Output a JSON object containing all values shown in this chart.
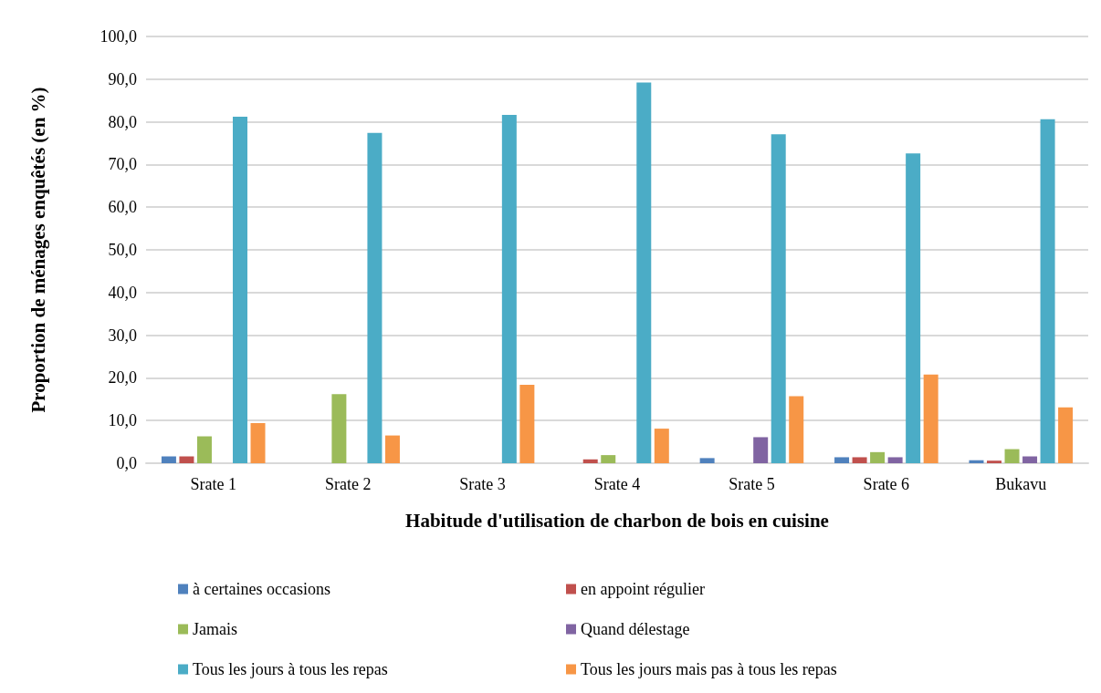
{
  "chart_data": {
    "type": "bar",
    "xlabel": "Habitude d'utilisation de charbon de bois en cuisine",
    "ylabel": "Proportion de ménages enquêtés (en %)",
    "categories": [
      "Srate 1",
      "Srate 2",
      "Srate 3",
      "Srate 4",
      "Srate 5",
      "Srate 6",
      "Bukavu"
    ],
    "series": [
      {
        "name": "à certaines occasions",
        "color": "#4f81bd",
        "values": [
          1.6,
          0,
          0,
          0,
          1.2,
          1.4,
          0.7
        ]
      },
      {
        "name": "en appoint régulier",
        "color": "#c0504d",
        "values": [
          1.6,
          0,
          0,
          0.9,
          0,
          1.4,
          0.6
        ]
      },
      {
        "name": "Jamais",
        "color": "#9bbb59",
        "values": [
          6.3,
          16.2,
          0,
          1.9,
          0,
          2.6,
          3.3
        ]
      },
      {
        "name": "Quand délestage",
        "color": "#8064a2",
        "values": [
          0,
          0,
          0,
          0,
          6.1,
          1.4,
          1.6
        ]
      },
      {
        "name": "Tous les jours à tous les repas",
        "color": "#4bacc6",
        "values": [
          81.2,
          77.4,
          81.6,
          89.2,
          77.1,
          72.6,
          80.6
        ]
      },
      {
        "name": "Tous les jours mais pas à tous les repas",
        "color": "#f79646",
        "values": [
          9.4,
          6.5,
          18.4,
          8.1,
          15.7,
          20.8,
          13.1
        ]
      }
    ],
    "ylim": [
      0,
      100
    ],
    "yticks": [
      {
        "value": 0,
        "label": "0,0"
      },
      {
        "value": 10,
        "label": "10,0"
      },
      {
        "value": 20,
        "label": "20,0"
      },
      {
        "value": 30,
        "label": "30,0"
      },
      {
        "value": 40,
        "label": "40,0"
      },
      {
        "value": 50,
        "label": "50,0"
      },
      {
        "value": 60,
        "label": "60,0"
      },
      {
        "value": 70,
        "label": "70,0"
      },
      {
        "value": 80,
        "label": "80,0"
      },
      {
        "value": 90,
        "label": "90,0"
      },
      {
        "value": 100,
        "label": "100,0"
      }
    ],
    "grid": "y",
    "legend": "bottom"
  }
}
